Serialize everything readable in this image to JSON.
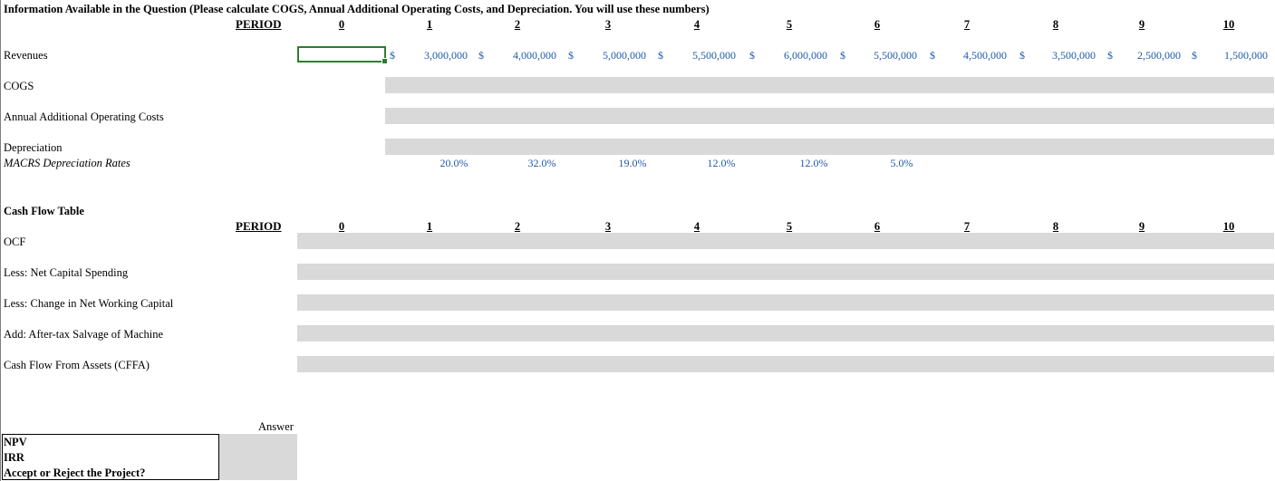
{
  "sheet": {
    "title": "Information Available in the Question (Please calculate COGS, Annual Additional Operating Costs, and Depreciation. You will use these numbers)",
    "period_label": "PERIOD",
    "periods": [
      "0",
      "1",
      "2",
      "3",
      "4",
      "5",
      "6",
      "7",
      "8",
      "9",
      "10"
    ],
    "rows": {
      "revenues": "Revenues",
      "cogs": "COGS",
      "operating_costs": "Annual Additional Operating Costs",
      "depreciation": "Depreciation",
      "macrs": "MACRS Depreciation Rates"
    },
    "currency_symbol": "$",
    "revenues": [
      "3,000,000",
      "4,000,000",
      "5,000,000",
      "5,500,000",
      "6,000,000",
      "5,500,000",
      "4,500,000",
      "3,500,000",
      "2,500,000",
      "1,500,000"
    ],
    "macrs_rates": [
      "20.0%",
      "32.0%",
      "19.0%",
      "12.0%",
      "12.0%",
      "5.0%"
    ]
  },
  "cash_flow": {
    "title": "Cash Flow Table",
    "period_label": "PERIOD",
    "periods": [
      "0",
      "1",
      "2",
      "3",
      "4",
      "5",
      "6",
      "7",
      "8",
      "9",
      "10"
    ],
    "rows": {
      "ocf": "OCF",
      "capital": "Less: Net Capital Spending",
      "nwc": "Less: Change in Net Working Capital",
      "salvage": "Add: After-tax Salvage of Machine",
      "cffa": "Cash Flow From Assets (CFFA)"
    }
  },
  "answer": {
    "header": "Answer",
    "npv": "NPV",
    "irr": "IRR",
    "decision": "Accept or Reject the Project?"
  },
  "colors": {
    "input_blue": "#1f5aa8",
    "fill_gray": "#d9d9d9",
    "selection_green": "#2e7d32"
  }
}
